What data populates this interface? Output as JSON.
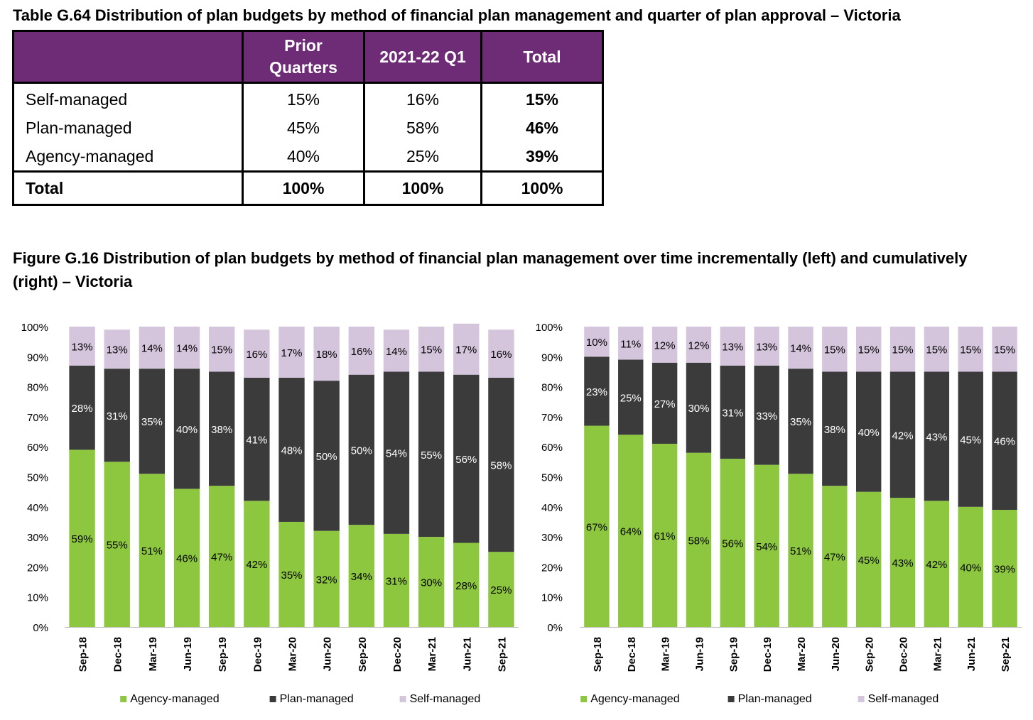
{
  "table": {
    "title": "Table G.64 Distribution of plan budgets by method of financial plan management and quarter of plan approval – Victoria",
    "header": {
      "blank": "",
      "col1": "Prior Quarters",
      "col2": "2021-22 Q1",
      "col3": "Total"
    },
    "rows": [
      {
        "label": "Self-managed",
        "prior": "15%",
        "q1": "16%",
        "total": "15%"
      },
      {
        "label": "Plan-managed",
        "prior": "45%",
        "q1": "58%",
        "total": "46%"
      },
      {
        "label": "Agency-managed",
        "prior": "40%",
        "q1": "25%",
        "total": "39%"
      }
    ],
    "total_row": {
      "label": "Total",
      "prior": "100%",
      "q1": "100%",
      "total": "100%"
    }
  },
  "figure": {
    "title": "Figure G.16 Distribution of plan budgets by method of financial plan management over time incrementally (left) and cumulatively (right) – Victoria"
  },
  "colors": {
    "agency": "#8dc63f",
    "plan": "#3b3b3b",
    "self": "#d4c5dc",
    "table_header": "#6e2c77"
  },
  "chart_data": [
    {
      "type": "bar",
      "stacked": true,
      "categories": [
        "Sep-18",
        "Dec-18",
        "Mar-19",
        "Jun-19",
        "Sep-19",
        "Dec-19",
        "Mar-20",
        "Jun-20",
        "Sep-20",
        "Dec-20",
        "Mar-21",
        "Jun-21",
        "Sep-21"
      ],
      "series": [
        {
          "name": "Agency-managed",
          "values": [
            59,
            55,
            51,
            46,
            47,
            42,
            35,
            32,
            34,
            31,
            30,
            28,
            25
          ]
        },
        {
          "name": "Plan-managed",
          "values": [
            28,
            31,
            35,
            40,
            38,
            41,
            48,
            50,
            50,
            54,
            55,
            56,
            58
          ]
        },
        {
          "name": "Self-managed",
          "values": [
            13,
            13,
            14,
            14,
            15,
            16,
            17,
            18,
            16,
            14,
            15,
            17,
            16
          ]
        }
      ],
      "ylim": [
        0,
        100
      ],
      "yticks": [
        "0%",
        "10%",
        "20%",
        "30%",
        "40%",
        "50%",
        "60%",
        "70%",
        "80%",
        "90%",
        "100%"
      ],
      "legend": "bottom"
    },
    {
      "type": "bar",
      "stacked": true,
      "categories": [
        "Sep-18",
        "Dec-18",
        "Mar-19",
        "Jun-19",
        "Sep-19",
        "Dec-19",
        "Mar-20",
        "Jun-20",
        "Sep-20",
        "Dec-20",
        "Mar-21",
        "Jun-21",
        "Sep-21"
      ],
      "series": [
        {
          "name": "Agency-managed",
          "values": [
            67,
            64,
            61,
            58,
            56,
            54,
            51,
            47,
            45,
            43,
            42,
            40,
            39
          ]
        },
        {
          "name": "Plan-managed",
          "values": [
            23,
            25,
            27,
            30,
            31,
            33,
            35,
            38,
            40,
            42,
            43,
            45,
            46
          ]
        },
        {
          "name": "Self-managed",
          "values": [
            10,
            11,
            12,
            12,
            13,
            13,
            14,
            15,
            15,
            15,
            15,
            15,
            15
          ]
        }
      ],
      "ylim": [
        0,
        100
      ],
      "yticks": [
        "0%",
        "10%",
        "20%",
        "30%",
        "40%",
        "50%",
        "60%",
        "70%",
        "80%",
        "90%",
        "100%"
      ],
      "legend": "bottom"
    }
  ]
}
